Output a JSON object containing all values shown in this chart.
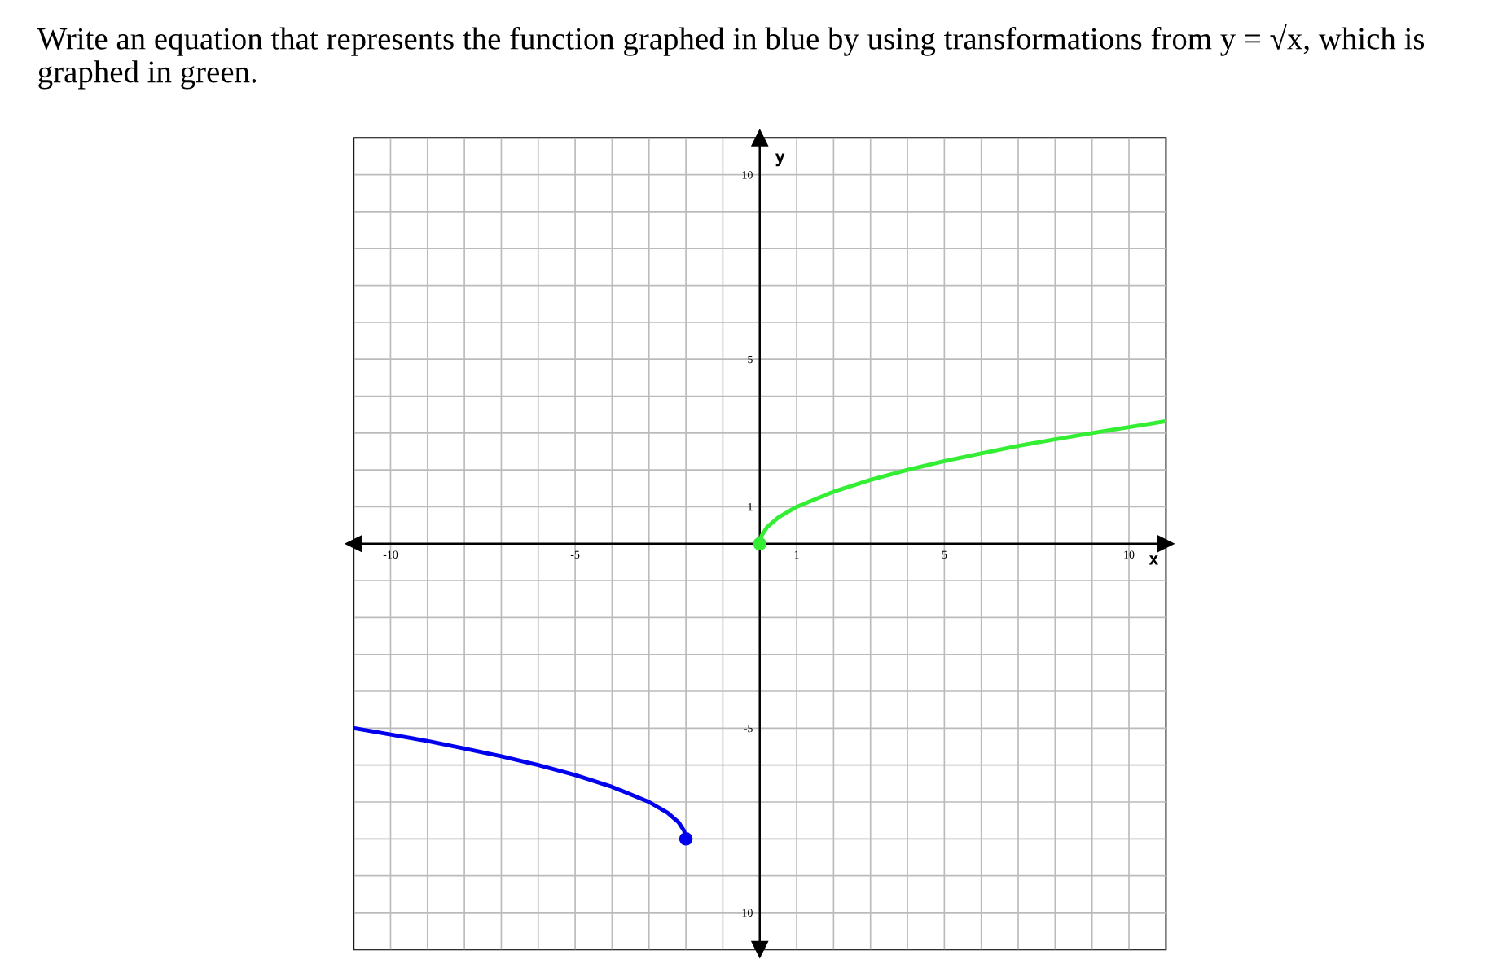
{
  "chart_data": {
    "type": "line",
    "title": "Write an equation that represents the function graphed in blue by using transformations from y = √x, which is graphed in green.",
    "xlabel": "x",
    "ylabel": "y",
    "series": [
      {
        "color": "#33ee33",
        "x": [
          0,
          0.05,
          0.2,
          0.5,
          1,
          2,
          3,
          4,
          5,
          6,
          7,
          8,
          9,
          10,
          11
        ],
        "values": [
          0,
          0.22,
          0.45,
          0.71,
          1,
          1.41,
          1.73,
          2,
          2.24,
          2.45,
          2.65,
          2.83,
          3,
          3.16,
          3.32
        ]
      },
      {
        "color": "#0000ee",
        "x": [
          -2,
          -2.05,
          -2.2,
          -2.5,
          -3,
          -4,
          -5,
          -6,
          -7,
          -8,
          -9,
          -10,
          -11
        ],
        "values": [
          -8,
          -7.78,
          -7.55,
          -7.29,
          -7,
          -6.59,
          -6.27,
          -6,
          -5.76,
          -5.55,
          -5.35,
          -5.17,
          -5
        ]
      },
      {
        "type": "scatter",
        "color": "#33ee33",
        "x": [
          0
        ],
        "values": [
          0
        ]
      },
      {
        "type": "scatter",
        "color": "#0000ee",
        "x": [
          -2
        ],
        "values": [
          -8
        ]
      }
    ],
    "xlim": [
      -11,
      11
    ],
    "ylim": [
      -11,
      11
    ],
    "xticks": [
      {
        "value": -11,
        "label": null
      },
      {
        "value": -10,
        "label": "-10"
      },
      {
        "value": -9,
        "label": null
      },
      {
        "value": -8,
        "label": null
      },
      {
        "value": -7,
        "label": null
      },
      {
        "value": -6,
        "label": null
      },
      {
        "value": -5,
        "label": "-5"
      },
      {
        "value": -4,
        "label": null
      },
      {
        "value": -3,
        "label": null
      },
      {
        "value": -2,
        "label": null
      },
      {
        "value": -1,
        "label": null
      },
      {
        "value": 1,
        "label": "1"
      },
      {
        "value": 2,
        "label": null
      },
      {
        "value": 3,
        "label": null
      },
      {
        "value": 4,
        "label": null
      },
      {
        "value": 5,
        "label": "5"
      },
      {
        "value": 6,
        "label": null
      },
      {
        "value": 7,
        "label": null
      },
      {
        "value": 8,
        "label": null
      },
      {
        "value": 9,
        "label": null
      },
      {
        "value": 10,
        "label": "10"
      },
      {
        "value": 11,
        "label": null
      }
    ],
    "yticks": [
      {
        "value": -11,
        "label": null
      },
      {
        "value": -10,
        "label": "-10"
      },
      {
        "value": -9,
        "label": null
      },
      {
        "value": -8,
        "label": null
      },
      {
        "value": -7,
        "label": null
      },
      {
        "value": -6,
        "label": null
      },
      {
        "value": -5,
        "label": "-5"
      },
      {
        "value": -4,
        "label": null
      },
      {
        "value": -3,
        "label": null
      },
      {
        "value": -2,
        "label": null
      },
      {
        "value": -1,
        "label": null
      },
      {
        "value": 1,
        "label": "1"
      },
      {
        "value": 2,
        "label": null
      },
      {
        "value": 3,
        "label": null
      },
      {
        "value": 4,
        "label": null
      },
      {
        "value": 5,
        "label": "5"
      },
      {
        "value": 6,
        "label": null
      },
      {
        "value": 7,
        "label": null
      },
      {
        "value": 8,
        "label": null
      },
      {
        "value": 9,
        "label": null
      },
      {
        "value": 10,
        "label": "10"
      },
      {
        "value": 11,
        "label": null
      }
    ],
    "grid": true,
    "legend": false,
    "line_style": "solid"
  }
}
